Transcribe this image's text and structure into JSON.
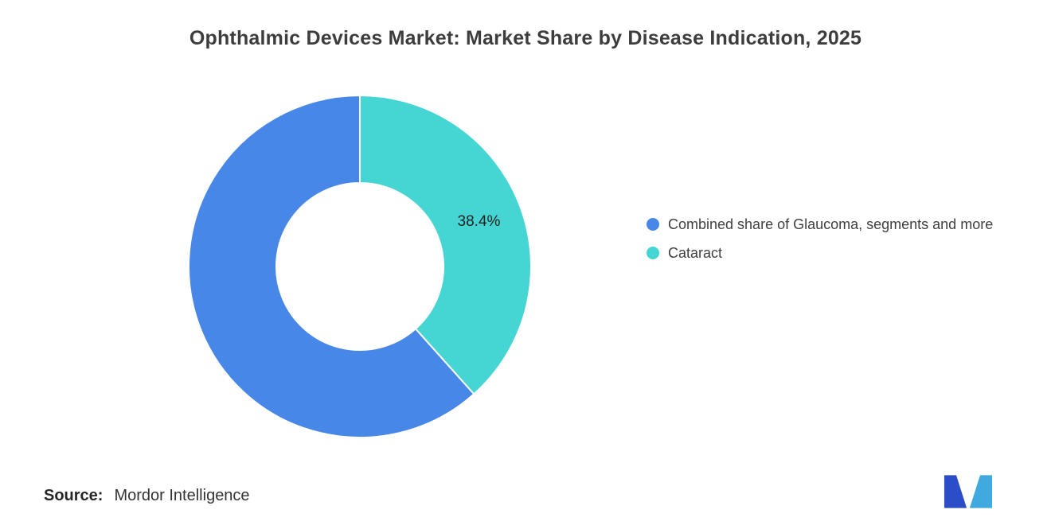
{
  "title": "Ophthalmic Devices Market: Market Share by Disease Indication, 2025",
  "chart_data": {
    "type": "pie",
    "subtype": "donut",
    "title": "Ophthalmic Devices Market: Market Share by Disease Indication, 2025",
    "start_angle": "top",
    "direction": "clockwise",
    "hole_radius_ratio": 0.49,
    "legend_position": "right",
    "slices": [
      {
        "id": "cataract",
        "label": "Cataract",
        "value": 38.4,
        "color": "#45D5D2",
        "data_label": "38.4%"
      },
      {
        "id": "glaucoma-combined",
        "label": "Combined share of Glaucoma, segments and more",
        "value": 61.6,
        "color": "#4687E7",
        "data_label": ""
      }
    ]
  },
  "legend": {
    "items": [
      {
        "label": "Combined share of Glaucoma, segments and more",
        "color": "#4687E7"
      },
      {
        "label": "Cataract",
        "color": "#45D5D2"
      }
    ]
  },
  "source": {
    "label": "Source:",
    "value": "Mordor Intelligence"
  },
  "data_label_color": "#222222",
  "logo_colors": {
    "left": "#2B4EC8",
    "right": "#3FA9E0"
  }
}
